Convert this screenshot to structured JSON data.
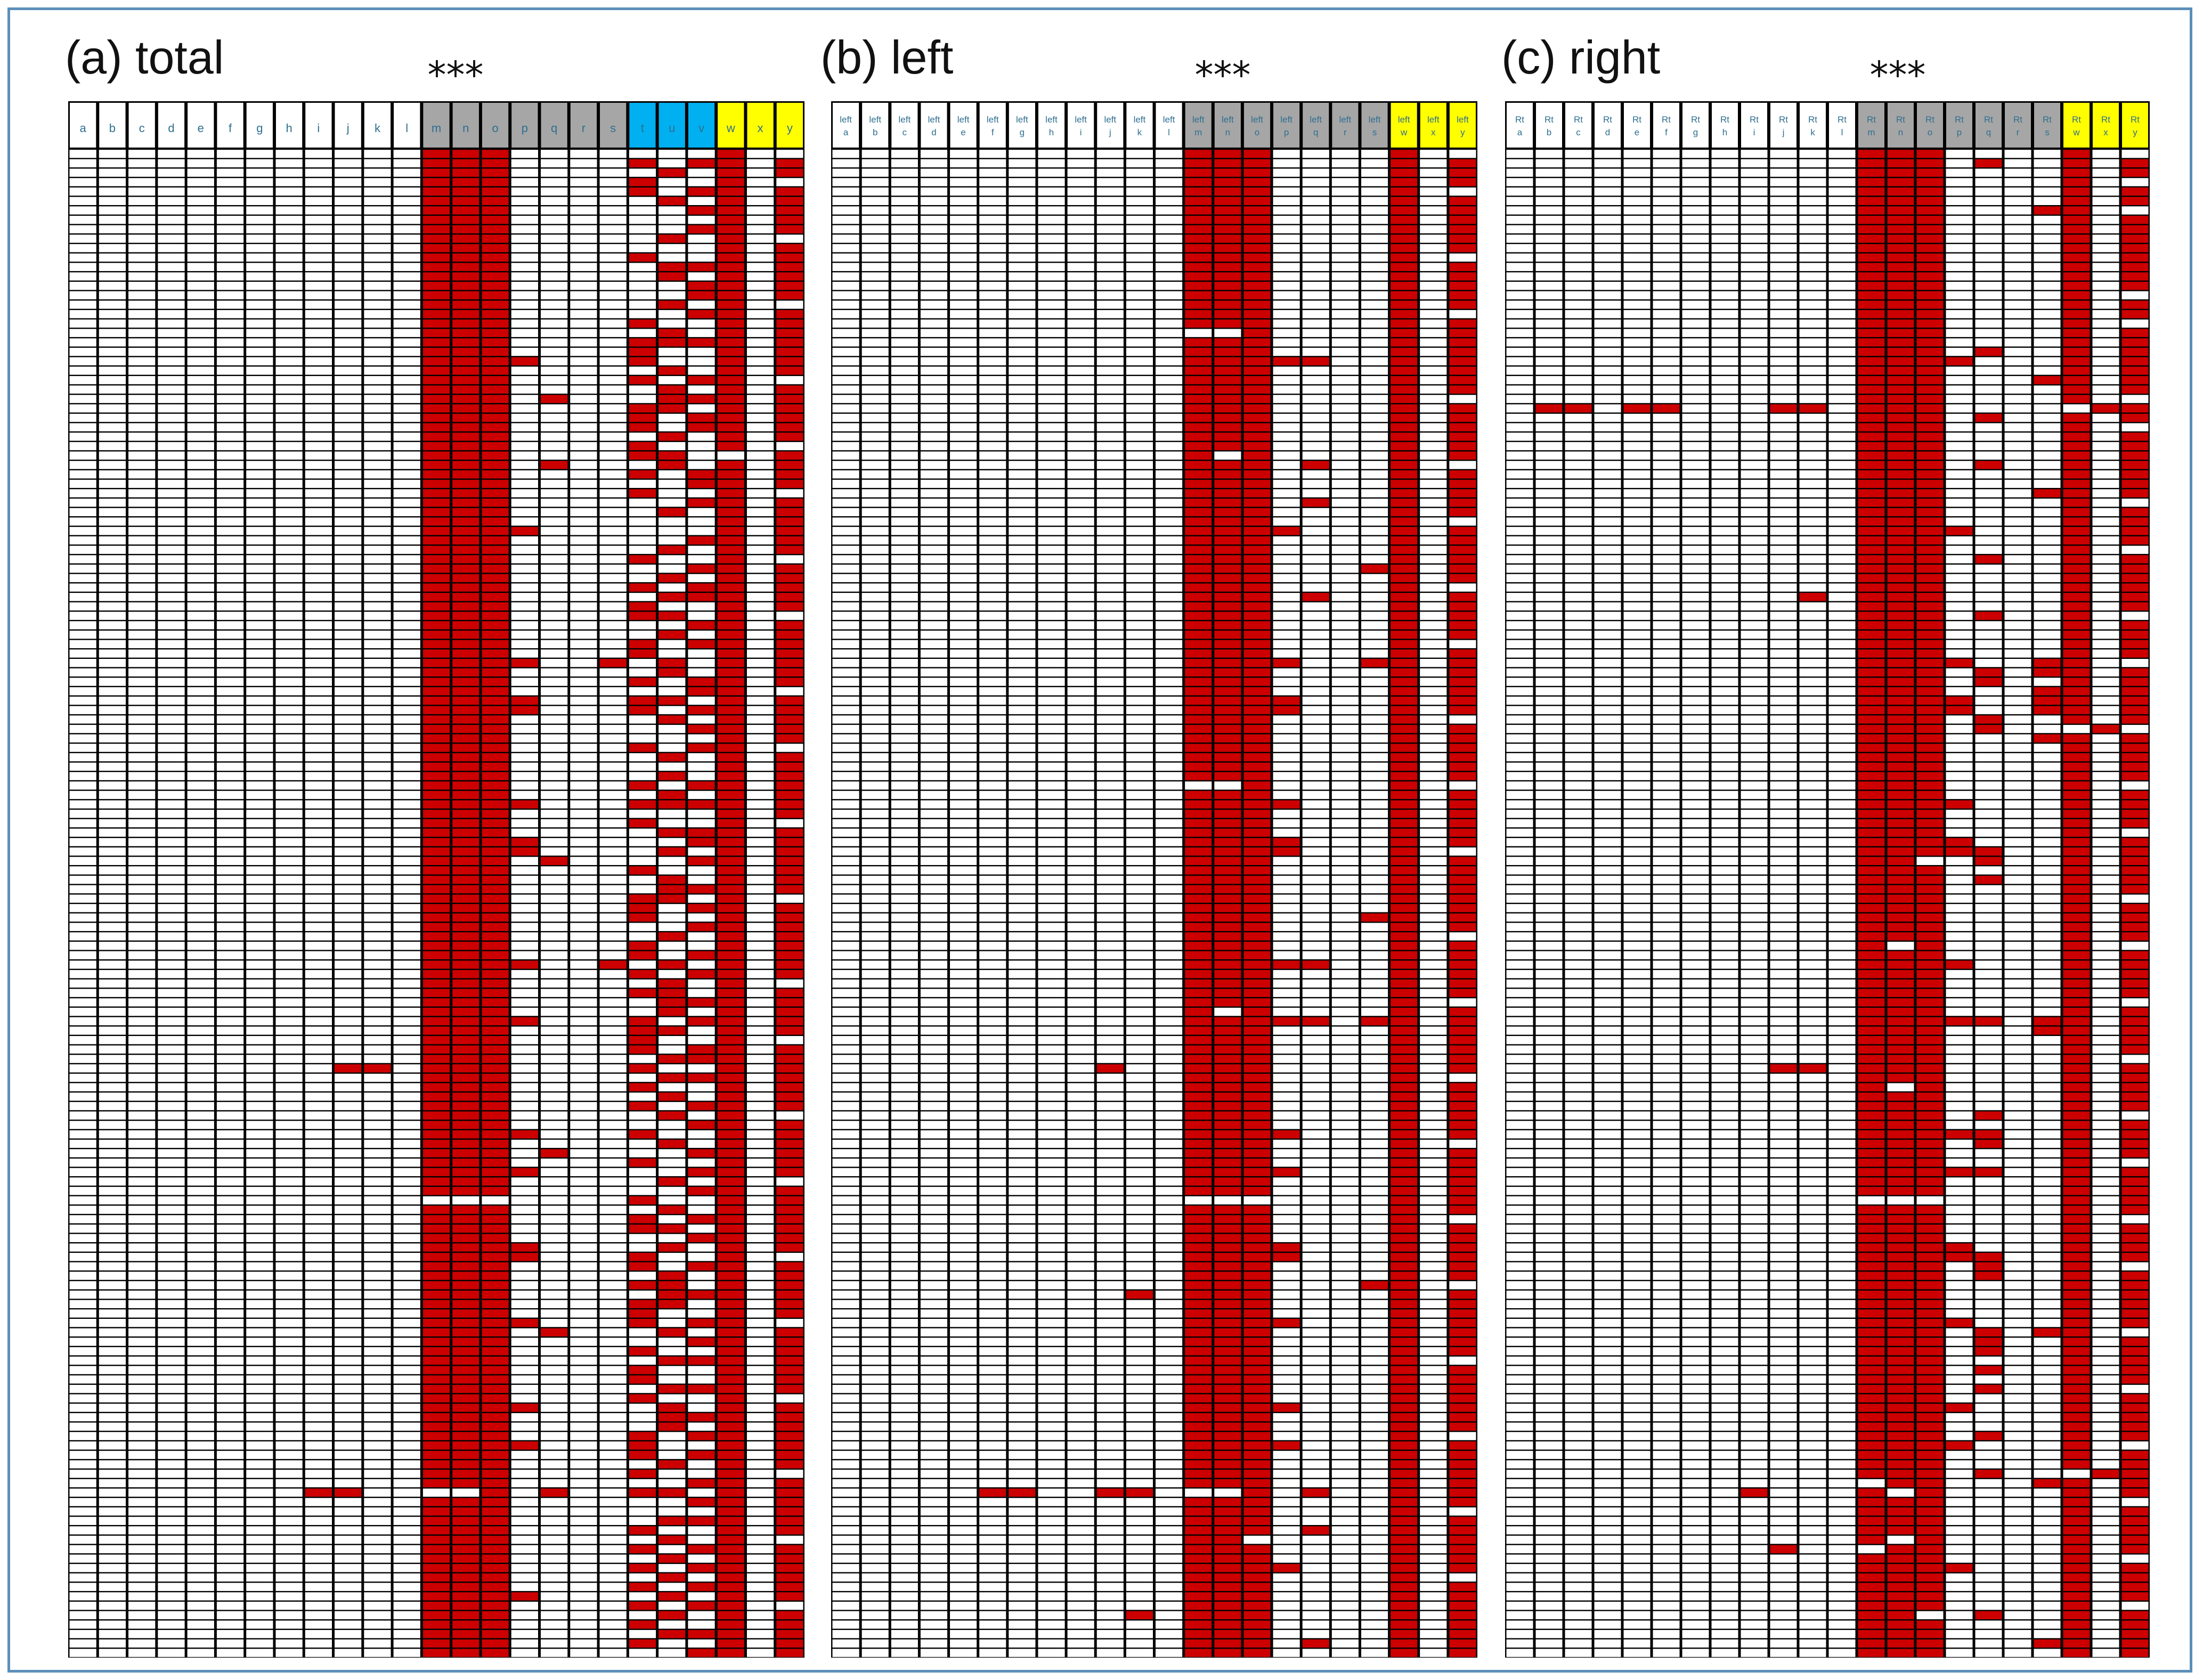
{
  "figure": {
    "colors": {
      "filled": "#cc0000",
      "empty": "#ffffff",
      "gray": "#a6a6a6",
      "blue": "#00b0f0",
      "yellow": "#ffff00",
      "white": "#ffffff",
      "frame": "#5b8fb9"
    }
  },
  "chart_data": [
    {
      "type": "heatmap",
      "panel": "(a) total",
      "title": "(a) total",
      "significance": "***",
      "columns": [
        "a",
        "b",
        "c",
        "d",
        "e",
        "f",
        "g",
        "h",
        "i",
        "j",
        "k",
        "l",
        "m",
        "n",
        "o",
        "p",
        "q",
        "r",
        "s",
        "t",
        "u",
        "v",
        "w",
        "x",
        "y"
      ],
      "column_groups": [
        "white",
        "white",
        "white",
        "white",
        "white",
        "white",
        "white",
        "white",
        "white",
        "white",
        "white",
        "white",
        "gray",
        "gray",
        "gray",
        "gray",
        "gray",
        "gray",
        "gray",
        "blue",
        "blue",
        "blue",
        "yellow",
        "yellow",
        "yellow"
      ],
      "n_rows": 160,
      "cell_rule": "solid=always filled except listed empty rows; sparse=empty except listed filled rows",
      "columns_data": {
        "a": {
          "mode": "sparse",
          "rows": []
        },
        "b": {
          "mode": "sparse",
          "rows": []
        },
        "c": {
          "mode": "sparse",
          "rows": []
        },
        "d": {
          "mode": "sparse",
          "rows": []
        },
        "e": {
          "mode": "sparse",
          "rows": []
        },
        "f": {
          "mode": "sparse",
          "rows": []
        },
        "g": {
          "mode": "sparse",
          "rows": []
        },
        "h": {
          "mode": "sparse",
          "rows": []
        },
        "i": {
          "mode": "sparse",
          "rows": [
            142
          ]
        },
        "j": {
          "mode": "sparse",
          "rows": [
            97,
            142
          ]
        },
        "k": {
          "mode": "sparse",
          "rows": [
            97
          ]
        },
        "l": {
          "mode": "sparse",
          "rows": []
        },
        "m": {
          "mode": "solid",
          "rows": [
            111,
            142
          ]
        },
        "n": {
          "mode": "solid",
          "rows": [
            111,
            142
          ]
        },
        "o": {
          "mode": "solid",
          "rows": [
            111
          ]
        },
        "p": {
          "mode": "sparse",
          "rows": [
            22,
            40,
            54,
            58,
            59,
            69,
            73,
            74,
            86,
            92,
            104,
            108,
            116,
            117,
            124,
            133,
            137,
            153
          ]
        },
        "q": {
          "mode": "sparse",
          "rows": [
            26,
            33,
            75,
            106,
            125,
            142
          ]
        },
        "r": {
          "mode": "sparse",
          "rows": []
        },
        "s": {
          "mode": "sparse",
          "rows": [
            54,
            86
          ]
        },
        "t": {
          "mode": "sparse",
          "rows": [
            1,
            3,
            4,
            11,
            18,
            20,
            21,
            22,
            24,
            27,
            28,
            29,
            31,
            32,
            34,
            36,
            43,
            46,
            48,
            49,
            52,
            53,
            56,
            58,
            59,
            63,
            67,
            69,
            71,
            76,
            79,
            80,
            81,
            84,
            85,
            87,
            89,
            92,
            93,
            94,
            95,
            97,
            99,
            101,
            104,
            107,
            111,
            113,
            114,
            117,
            118,
            120,
            122,
            123,
            124,
            127,
            129,
            130,
            132,
            136,
            137,
            138,
            140,
            142,
            146,
            148,
            150,
            152,
            154,
            156,
            158
          ]
        },
        "u": {
          "mode": "sparse",
          "rows": [
            2,
            5,
            9,
            12,
            13,
            16,
            19,
            20,
            23,
            25,
            26,
            27,
            30,
            32,
            33,
            38,
            42,
            45,
            47,
            49,
            51,
            54,
            55,
            58,
            60,
            64,
            66,
            68,
            69,
            72,
            74,
            77,
            78,
            79,
            83,
            86,
            88,
            89,
            90,
            91,
            93,
            96,
            98,
            100,
            102,
            105,
            109,
            112,
            114,
            116,
            119,
            120,
            121,
            122,
            125,
            128,
            131,
            133,
            134,
            135,
            139,
            142,
            145,
            147,
            149,
            151,
            153,
            155,
            157
          ]
        },
        "v": {
          "mode": "sparse",
          "rows": [
            1,
            4,
            6,
            8,
            12,
            14,
            15,
            17,
            20,
            24,
            26,
            28,
            29,
            34,
            35,
            37,
            41,
            44,
            46,
            47,
            50,
            52,
            56,
            57,
            59,
            61,
            63,
            67,
            69,
            72,
            73,
            75,
            78,
            80,
            82,
            85,
            87,
            90,
            92,
            95,
            96,
            98,
            101,
            103,
            106,
            108,
            110,
            113,
            115,
            118,
            121,
            124,
            126,
            128,
            131,
            134,
            136,
            138,
            141,
            143,
            145,
            148,
            150,
            152,
            154,
            157,
            159
          ]
        },
        "w": {
          "mode": "solid",
          "rows": [
            32
          ]
        },
        "x": {
          "mode": "sparse",
          "rows": []
        },
        "y": {
          "mode": "solid",
          "rows": [
            0,
            3,
            9,
            16,
            24,
            31,
            36,
            43,
            49,
            57,
            63,
            71,
            79,
            88,
            94,
            102,
            109,
            117,
            124,
            132,
            140,
            147,
            154
          ]
        }
      }
    },
    {
      "type": "heatmap",
      "panel": "(b) left",
      "title": "(b) left",
      "significance": "***",
      "columns": [
        "left a",
        "left b",
        "left c",
        "left d",
        "left e",
        "left f",
        "left g",
        "left h",
        "left i",
        "left j",
        "left k",
        "left l",
        "left m",
        "left n",
        "left o",
        "left p",
        "left q",
        "left r",
        "left s",
        "left w",
        "left x",
        "left y"
      ],
      "column_groups": [
        "white",
        "white",
        "white",
        "white",
        "white",
        "white",
        "white",
        "white",
        "white",
        "white",
        "white",
        "white",
        "gray",
        "gray",
        "gray",
        "gray",
        "gray",
        "gray",
        "gray",
        "yellow",
        "yellow",
        "yellow"
      ],
      "n_rows": 160,
      "columns_data": {
        "left a": {
          "mode": "sparse",
          "rows": []
        },
        "left b": {
          "mode": "sparse",
          "rows": []
        },
        "left c": {
          "mode": "sparse",
          "rows": []
        },
        "left d": {
          "mode": "sparse",
          "rows": []
        },
        "left e": {
          "mode": "sparse",
          "rows": []
        },
        "left f": {
          "mode": "sparse",
          "rows": [
            142
          ]
        },
        "left g": {
          "mode": "sparse",
          "rows": [
            142
          ]
        },
        "left h": {
          "mode": "sparse",
          "rows": []
        },
        "left i": {
          "mode": "sparse",
          "rows": []
        },
        "left j": {
          "mode": "sparse",
          "rows": [
            97,
            142
          ]
        },
        "left k": {
          "mode": "sparse",
          "rows": [
            121,
            142,
            155
          ]
        },
        "left l": {
          "mode": "sparse",
          "rows": []
        },
        "left m": {
          "mode": "solid",
          "rows": [
            19,
            67,
            111,
            142
          ]
        },
        "left n": {
          "mode": "solid",
          "rows": [
            19,
            32,
            67,
            91,
            111,
            142
          ]
        },
        "left o": {
          "mode": "solid",
          "rows": [
            111,
            147
          ]
        },
        "left p": {
          "mode": "sparse",
          "rows": [
            22,
            40,
            54,
            58,
            59,
            69,
            73,
            74,
            86,
            92,
            104,
            108,
            116,
            117,
            124,
            133,
            137,
            150
          ]
        },
        "left q": {
          "mode": "sparse",
          "rows": [
            22,
            33,
            37,
            47,
            86,
            92,
            142,
            146,
            158
          ]
        },
        "left r": {
          "mode": "sparse",
          "rows": []
        },
        "left s": {
          "mode": "sparse",
          "rows": [
            44,
            54,
            81,
            92,
            120
          ]
        },
        "left w": {
          "mode": "solid",
          "rows": []
        },
        "left x": {
          "mode": "sparse",
          "rows": []
        },
        "left y": {
          "mode": "solid",
          "rows": [
            0,
            4,
            11,
            17,
            26,
            33,
            39,
            46,
            52,
            60,
            67,
            74,
            83,
            90,
            98,
            105,
            113,
            120,
            128,
            136,
            144,
            151
          ]
        }
      }
    },
    {
      "type": "heatmap",
      "panel": "(c) right",
      "title": "(c) right",
      "significance": "***",
      "columns": [
        "Rt a",
        "Rt b",
        "Rt c",
        "Rt d",
        "Rt e",
        "Rt f",
        "Rt g",
        "Rt h",
        "Rt i",
        "Rt j",
        "Rt k",
        "Rt l",
        "Rt m",
        "Rt n",
        "Rt o",
        "Rt p",
        "Rt q",
        "Rt r",
        "Rt s",
        "Rt w",
        "Rt x",
        "Rt y"
      ],
      "column_groups": [
        "white",
        "white",
        "white",
        "white",
        "white",
        "white",
        "white",
        "white",
        "white",
        "white",
        "white",
        "white",
        "gray",
        "gray",
        "gray",
        "gray",
        "gray",
        "gray",
        "gray",
        "yellow",
        "yellow",
        "yellow"
      ],
      "n_rows": 160,
      "columns_data": {
        "Rt a": {
          "mode": "sparse",
          "rows": []
        },
        "Rt b": {
          "mode": "sparse",
          "rows": [
            27
          ]
        },
        "Rt c": {
          "mode": "sparse",
          "rows": [
            27
          ]
        },
        "Rt d": {
          "mode": "sparse",
          "rows": []
        },
        "Rt e": {
          "mode": "sparse",
          "rows": [
            27
          ]
        },
        "Rt f": {
          "mode": "sparse",
          "rows": [
            27
          ]
        },
        "Rt g": {
          "mode": "sparse",
          "rows": []
        },
        "Rt h": {
          "mode": "sparse",
          "rows": []
        },
        "Rt i": {
          "mode": "sparse",
          "rows": [
            142
          ]
        },
        "Rt j": {
          "mode": "sparse",
          "rows": [
            27,
            97,
            148
          ]
        },
        "Rt k": {
          "mode": "sparse",
          "rows": [
            27,
            47,
            97
          ]
        },
        "Rt l": {
          "mode": "sparse",
          "rows": []
        },
        "Rt m": {
          "mode": "solid",
          "rows": [
            111,
            141,
            148
          ]
        },
        "Rt n": {
          "mode": "solid",
          "rows": [
            84,
            99,
            111,
            142,
            147
          ]
        },
        "Rt o": {
          "mode": "solid",
          "rows": [
            75,
            111,
            155
          ]
        },
        "Rt p": {
          "mode": "sparse",
          "rows": [
            22,
            40,
            54,
            58,
            59,
            69,
            73,
            74,
            86,
            92,
            104,
            108,
            116,
            117,
            124,
            133,
            137,
            150
          ]
        },
        "Rt q": {
          "mode": "sparse",
          "rows": [
            1,
            21,
            28,
            33,
            43,
            49,
            55,
            56,
            60,
            61,
            74,
            75,
            77,
            92,
            102,
            104,
            105,
            108,
            117,
            118,
            119,
            125,
            126,
            127,
            129,
            131,
            136,
            140,
            155
          ]
        },
        "Rt r": {
          "mode": "sparse",
          "rows": []
        },
        "Rt s": {
          "mode": "sparse",
          "rows": [
            6,
            24,
            36,
            54,
            55,
            57,
            58,
            59,
            62,
            92,
            93,
            125,
            141,
            158
          ]
        },
        "Rt w": {
          "mode": "solid",
          "rows": [
            27,
            61,
            140
          ]
        },
        "Rt x": {
          "mode": "sparse",
          "rows": [
            27,
            61,
            140
          ]
        },
        "Rt y": {
          "mode": "solid",
          "rows": [
            0,
            3,
            6,
            15,
            18,
            26,
            29,
            37,
            42,
            49,
            54,
            61,
            67,
            72,
            79,
            84,
            90,
            96,
            102,
            107,
            113,
            118,
            125,
            131,
            137,
            143,
            149,
            154
          ]
        }
      }
    }
  ]
}
